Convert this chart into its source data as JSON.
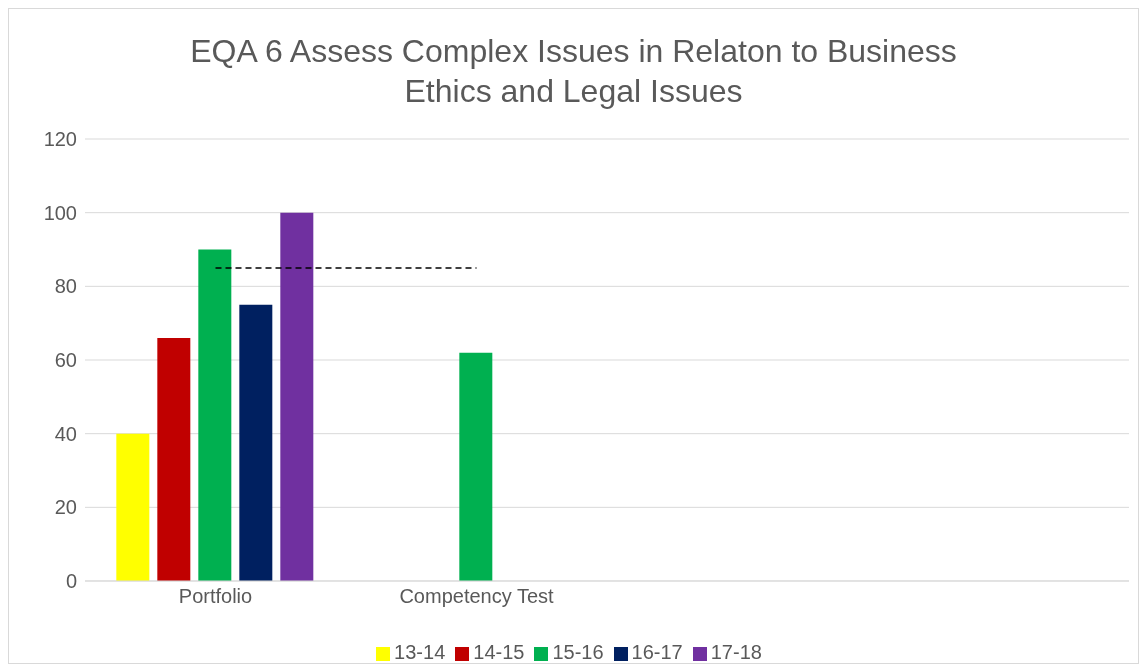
{
  "chart_data": {
    "type": "bar",
    "title": "EQA 6 Assess Complex Issues in Relaton to Business Ethics and Legal Issues",
    "categories": [
      "Portfolio",
      "Competency Test",
      null,
      null
    ],
    "series": [
      {
        "name": "13-14",
        "color": "#ffff00",
        "values": [
          40,
          null,
          null,
          null
        ]
      },
      {
        "name": "14-15",
        "color": "#c00000",
        "values": [
          66,
          null,
          null,
          null
        ]
      },
      {
        "name": "15-16",
        "color": "#00b050",
        "values": [
          90,
          62,
          null,
          null
        ]
      },
      {
        "name": "16-17",
        "color": "#002060",
        "values": [
          75,
          null,
          null,
          null
        ]
      },
      {
        "name": "17-18",
        "color": "#7030a0",
        "values": [
          100,
          null,
          null,
          null
        ]
      }
    ],
    "ylim": [
      0,
      120
    ],
    "yticks": [
      0,
      20,
      40,
      60,
      80,
      100,
      120
    ],
    "grid": "y",
    "legend": "bottom",
    "ref_lines": [
      {
        "axis": "y",
        "value": 85,
        "color": "#000000",
        "line_style": "dashed"
      }
    ]
  }
}
